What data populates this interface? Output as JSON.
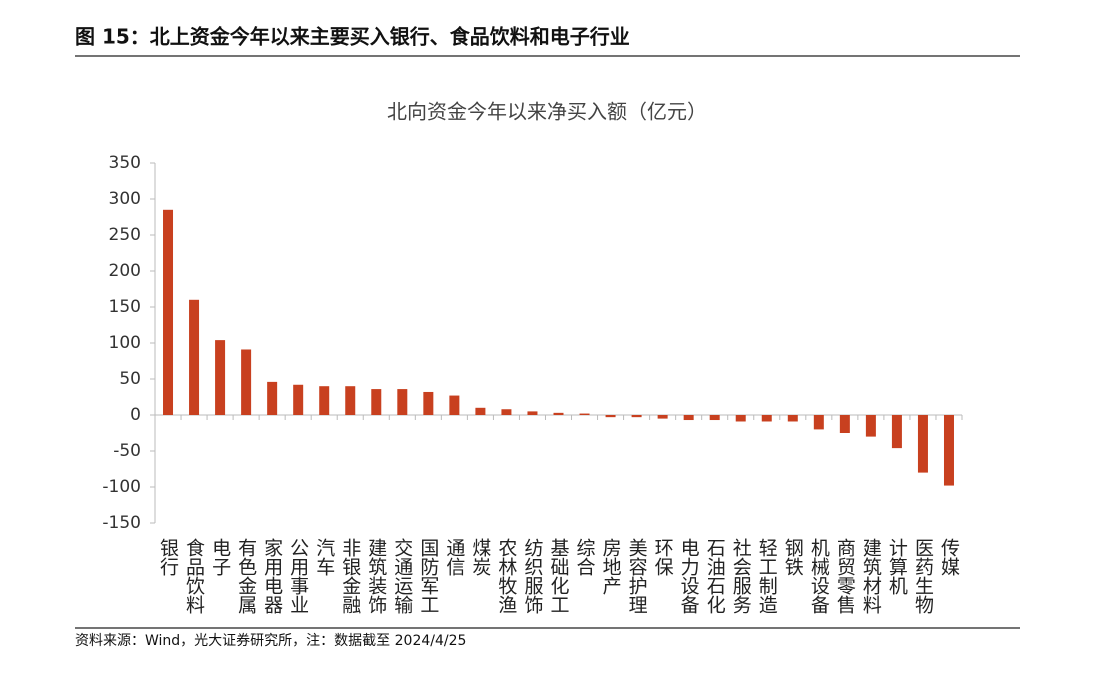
{
  "figure_title": "图 15：北上资金今年以来主要买入银行、食品饮料和电子行业",
  "source": "资料来源：Wind，光大证券研究所，注：数据截至 2024/4/25",
  "chart_data": {
    "type": "bar",
    "title": "北向资金今年以来净买入额（亿元）",
    "categories": [
      "银行",
      "食品饮料",
      "电子",
      "有色金属",
      "家用电器",
      "公用事业",
      "汽车",
      "非银金融",
      "建筑装饰",
      "交通运输",
      "国防军工",
      "通信",
      "煤炭",
      "农林牧渔",
      "纺织服饰",
      "基础化工",
      "综合",
      "房地产",
      "美容护理",
      "环保",
      "电力设备",
      "石油石化",
      "社会服务",
      "轻工制造",
      "钢铁",
      "机械设备",
      "商贸零售",
      "建筑材料",
      "计算机",
      "医药生物",
      "传媒"
    ],
    "values": [
      285,
      160,
      104,
      91,
      46,
      42,
      40,
      40,
      36,
      36,
      32,
      27,
      10,
      8,
      5,
      3,
      2,
      -3,
      -3,
      -5,
      -7,
      -7,
      -9,
      -9,
      -9,
      -20,
      -25,
      -30,
      -46,
      -80,
      -98
    ],
    "color": "#c8401f",
    "ylim": [
      -150,
      350
    ],
    "yticks": [
      -150,
      -100,
      -50,
      0,
      50,
      100,
      150,
      200,
      250,
      300,
      350
    ],
    "grid": false
  }
}
